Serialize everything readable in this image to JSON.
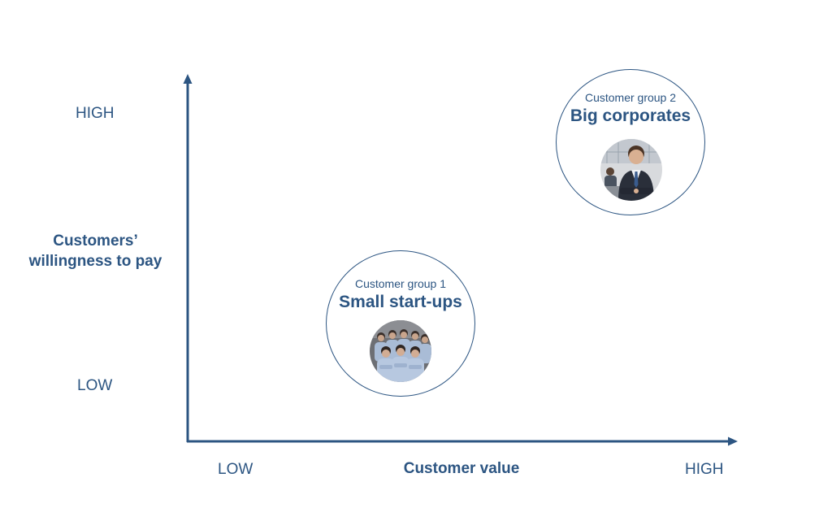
{
  "y_axis": {
    "label_line1": "Customers’",
    "label_line2": "willingness to pay",
    "high": "HIGH",
    "low": "LOW"
  },
  "x_axis": {
    "label": "Customer value",
    "low": "LOW",
    "high": "HIGH"
  },
  "groups": [
    {
      "subtitle": "Customer group 1",
      "title": "Small start-ups",
      "image": "group-of-people-photo"
    },
    {
      "subtitle": "Customer group 2",
      "title": "Big corporates",
      "image": "businessman-photo"
    }
  ],
  "colors": {
    "accent": "#2c5582"
  }
}
